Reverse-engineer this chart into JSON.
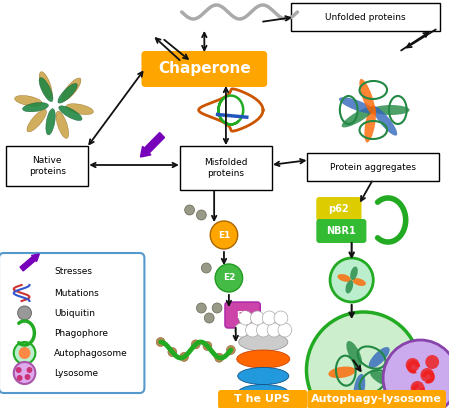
{
  "bg_color": "#ffffff",
  "chaperone_box_color": "#FFA500",
  "chaperone_text": "Chaperone",
  "chaperone_text_color": "#ffffff",
  "ups_label": "T he UPS",
  "ups_label_color": "#FFA500",
  "autophagy_label": "Autophagy-lysosome",
  "autophagy_label_color": "#FFA500",
  "native_proteins_label": "Native\nproteins",
  "misfolded_proteins_label": "Misfolded\nproteins",
  "protein_aggregates_label": "Protein aggregates",
  "unfolded_proteins_label": "Unfolded proteins",
  "e1_color": "#FFA500",
  "e2_color": "#44BB44",
  "e3_color": "#CC44AA",
  "p62_color": "#DDCC00",
  "nbr1_color": "#33BB33",
  "legend_items": [
    "Stresses",
    "Mutations",
    "Ubiquitin",
    "Phagophore",
    "Autophagosome",
    "Lysosome"
  ],
  "border_color": "#5599CC",
  "arrow_color": "#111111",
  "proteasome_orange": "#FF6600",
  "proteasome_blue": "#2299DD",
  "proteasome_gray": "#CCCCCC",
  "squiggle_color": "#AAAAAA"
}
